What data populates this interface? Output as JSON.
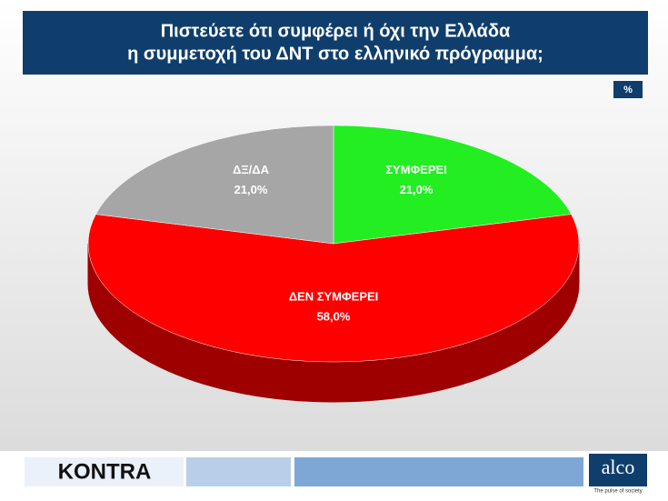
{
  "chart_data": {
    "type": "pie",
    "title": [
      "Πιστεύετε ότι συμφέρει ή όχι την Ελλάδα",
      "η συμμετοχή του ΔΝΤ στο ελληνικό πρόγραμμα;"
    ],
    "unit_label": "%",
    "categories": [
      "ΣΥΜΦΕΡΕΙ",
      "ΔΕΝ ΣΥΜΦΕΡΕΙ",
      "ΔΞ/ΔΑ"
    ],
    "values": [
      21,
      58,
      21
    ],
    "value_labels": [
      "21,0%",
      "58,0%",
      "21,0%"
    ],
    "colors": [
      "#22ee22",
      "#ff0000",
      "#a6a6a6"
    ]
  },
  "footer": {
    "brand": "KONTRA",
    "logo": "alco",
    "tagline": "The pulse of society"
  }
}
